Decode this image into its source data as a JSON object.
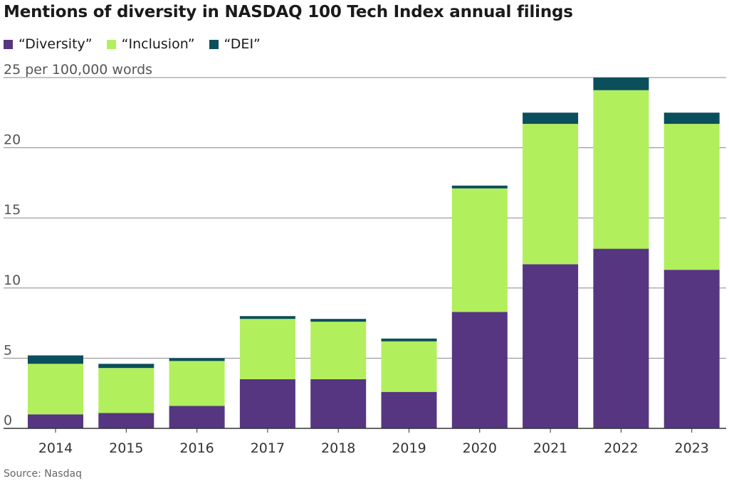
{
  "colors": {
    "diversity": "#563680",
    "inclusion": "#b2ef5c",
    "dei": "#0b4f5c",
    "grid": "#888888",
    "axis": "#333333"
  },
  "chart_data": {
    "type": "bar",
    "stacked": true,
    "title": "Mentions of diversity in NASDAQ 100 Tech Index annual filings",
    "ylabel": "per 100,000 words",
    "top_tick_label": "25 per 100,000 words",
    "source": "Source: Nasdaq",
    "legend_position": "top-left",
    "grid": true,
    "ylim": [
      0,
      25
    ],
    "yticks": [
      0,
      5,
      10,
      15,
      20,
      25
    ],
    "categories": [
      "2014",
      "2015",
      "2016",
      "2017",
      "2018",
      "2019",
      "2020",
      "2021",
      "2022",
      "2023"
    ],
    "series": [
      {
        "name": "“Diversity”",
        "color_key": "diversity",
        "values": [
          1.0,
          1.1,
          1.6,
          3.5,
          3.5,
          2.6,
          8.3,
          11.7,
          12.8,
          11.3
        ]
      },
      {
        "name": "“Inclusion”",
        "color_key": "inclusion",
        "values": [
          3.6,
          3.2,
          3.2,
          4.3,
          4.1,
          3.6,
          8.8,
          10.0,
          11.3,
          10.4
        ]
      },
      {
        "name": "“DEI”",
        "color_key": "dei",
        "values": [
          0.6,
          0.3,
          0.2,
          0.2,
          0.2,
          0.2,
          0.2,
          0.8,
          0.9,
          0.8
        ]
      }
    ]
  }
}
